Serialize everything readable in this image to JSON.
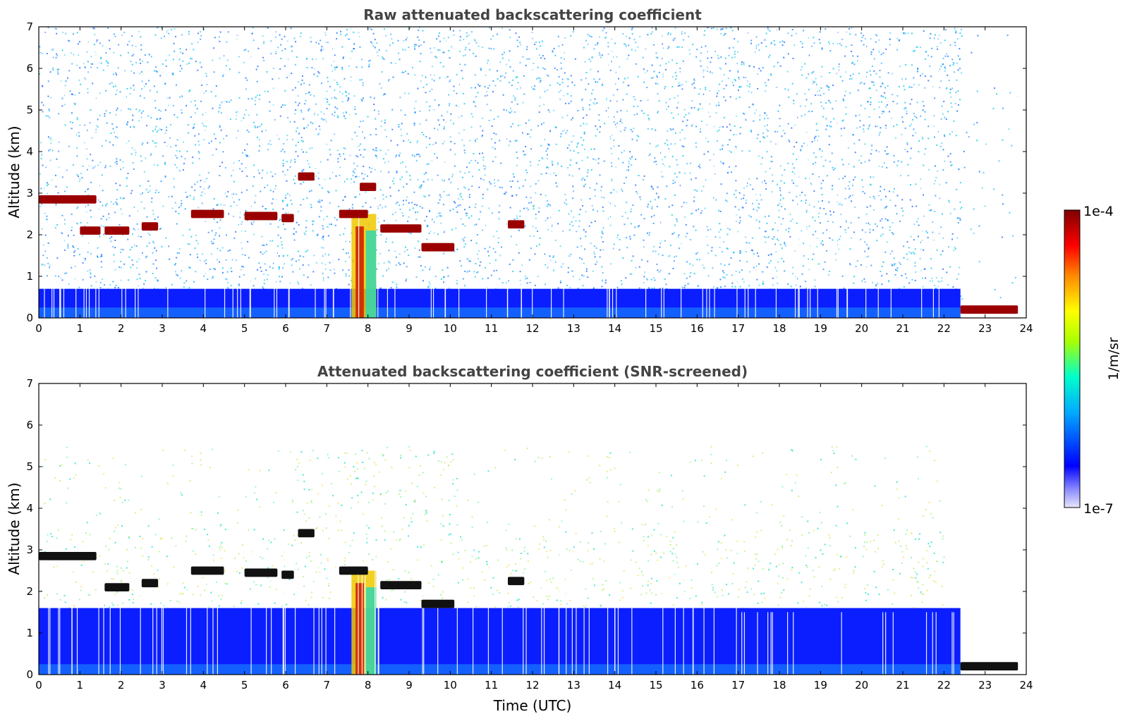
{
  "chart_data": [
    {
      "type": "heatmap",
      "title": "Raw attenuated backscattering coefficient",
      "xlabel": "",
      "ylabel": "Altitude (km)",
      "xlim": [
        0,
        24
      ],
      "ylim": [
        0,
        7
      ],
      "x_ticks": [
        0,
        1,
        2,
        3,
        4,
        5,
        6,
        7,
        8,
        9,
        10,
        11,
        12,
        13,
        14,
        15,
        16,
        17,
        18,
        19,
        20,
        21,
        22,
        23,
        24
      ],
      "y_ticks": [
        0,
        1,
        2,
        3,
        4,
        5,
        6,
        7
      ],
      "features": [
        {
          "kind": "layer",
          "x": [
            0.0,
            1.4
          ],
          "alt_km": 2.85
        },
        {
          "kind": "layer",
          "x": [
            1.0,
            1.5
          ],
          "alt_km": 2.1
        },
        {
          "kind": "layer",
          "x": [
            1.6,
            2.2
          ],
          "alt_km": 2.1
        },
        {
          "kind": "layer",
          "x": [
            2.5,
            2.9
          ],
          "alt_km": 2.2
        },
        {
          "kind": "layer",
          "x": [
            3.7,
            4.5
          ],
          "alt_km": 2.5
        },
        {
          "kind": "layer",
          "x": [
            5.0,
            5.8
          ],
          "alt_km": 2.45
        },
        {
          "kind": "layer",
          "x": [
            5.9,
            6.2
          ],
          "alt_km": 2.4
        },
        {
          "kind": "layer",
          "x": [
            6.3,
            6.7
          ],
          "alt_km": 3.4
        },
        {
          "kind": "layer",
          "x": [
            7.8,
            8.2
          ],
          "alt_km": 3.15
        },
        {
          "kind": "layer",
          "x": [
            7.3,
            8.0
          ],
          "alt_km": 2.5
        },
        {
          "kind": "layer",
          "x": [
            8.3,
            9.3
          ],
          "alt_km": 2.15
        },
        {
          "kind": "layer",
          "x": [
            9.3,
            10.1
          ],
          "alt_km": 1.7
        },
        {
          "kind": "layer",
          "x": [
            11.4,
            11.8
          ],
          "alt_km": 2.25
        },
        {
          "kind": "layer",
          "x": [
            22.4,
            23.8
          ],
          "alt_km": 0.2
        }
      ],
      "plume": {
        "x": [
          7.6,
          8.2
        ],
        "alt_km": [
          0,
          2.5
        ]
      },
      "boundary_layer_top_km": 0.7
    },
    {
      "type": "heatmap",
      "title": "Attenuated backscattering coefficient (SNR-screened)",
      "xlabel": "Time (UTC)",
      "ylabel": "Altitude (km)",
      "xlim": [
        0,
        24
      ],
      "ylim": [
        0,
        7
      ],
      "x_ticks": [
        0,
        1,
        2,
        3,
        4,
        5,
        6,
        7,
        8,
        9,
        10,
        11,
        12,
        13,
        14,
        15,
        16,
        17,
        18,
        19,
        20,
        21,
        22,
        23,
        24
      ],
      "y_ticks": [
        0,
        1,
        2,
        3,
        4,
        5,
        6,
        7
      ],
      "features": [
        {
          "kind": "layer",
          "x": [
            0.0,
            1.4
          ],
          "alt_km": 2.85
        },
        {
          "kind": "layer",
          "x": [
            1.6,
            2.2
          ],
          "alt_km": 2.1
        },
        {
          "kind": "layer",
          "x": [
            2.5,
            2.9
          ],
          "alt_km": 2.2
        },
        {
          "kind": "layer",
          "x": [
            3.7,
            4.5
          ],
          "alt_km": 2.5
        },
        {
          "kind": "layer",
          "x": [
            5.0,
            5.8
          ],
          "alt_km": 2.45
        },
        {
          "kind": "layer",
          "x": [
            5.9,
            6.2
          ],
          "alt_km": 2.4
        },
        {
          "kind": "layer",
          "x": [
            6.3,
            6.7
          ],
          "alt_km": 3.4
        },
        {
          "kind": "layer",
          "x": [
            7.3,
            8.0
          ],
          "alt_km": 2.5
        },
        {
          "kind": "layer",
          "x": [
            8.3,
            9.3
          ],
          "alt_km": 2.15
        },
        {
          "kind": "layer",
          "x": [
            9.3,
            10.1
          ],
          "alt_km": 1.7
        },
        {
          "kind": "layer",
          "x": [
            11.4,
            11.8
          ],
          "alt_km": 2.25
        },
        {
          "kind": "layer",
          "x": [
            22.4,
            23.8
          ],
          "alt_km": 0.2
        }
      ],
      "plume": {
        "x": [
          7.6,
          8.2
        ],
        "alt_km": [
          0,
          2.5
        ]
      },
      "boundary_layer_top_km": 1.6
    }
  ],
  "colorbar": {
    "label": "1/m/sr",
    "max_label": "1e-4",
    "min_label": "1e-7",
    "scale": "log",
    "range": [
      1e-07,
      0.0001
    ],
    "colormap": [
      "#e6e6fa",
      "#0000ff",
      "#00aaff",
      "#00ffcc",
      "#aaff00",
      "#ffff00",
      "#ff8800",
      "#ff0000",
      "#800000"
    ]
  }
}
